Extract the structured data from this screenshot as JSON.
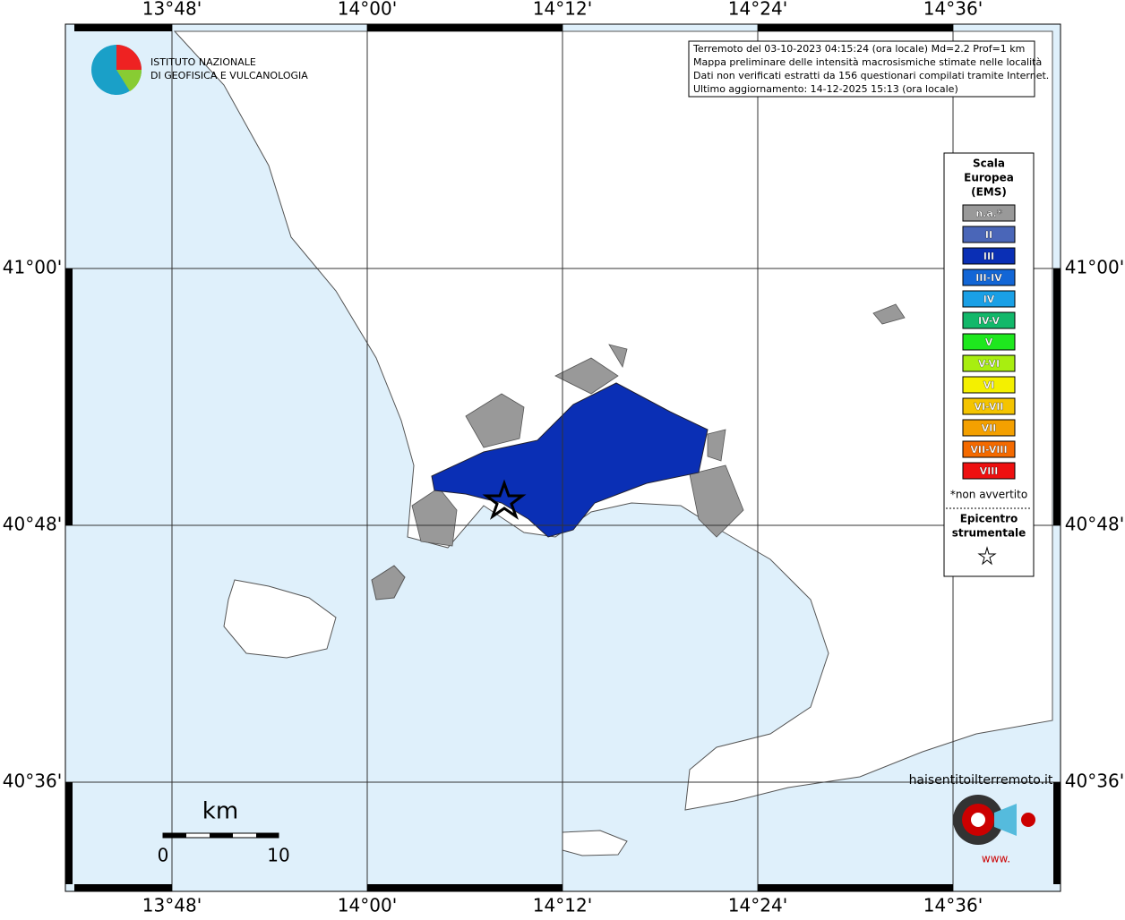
{
  "map": {
    "lon_labels": [
      "13°48'",
      "14°00'",
      "14°12'",
      "14°24'",
      "14°36'"
    ],
    "lat_labels": [
      "41°00'",
      "40°48'",
      "40°36'"
    ],
    "logo": [
      "ISTITUTO NAZIONALE",
      "DI GEOFISICA E VULCANOLOGIA"
    ],
    "info": [
      "Terremoto del 03-10-2023 04:15:24 (ora locale) Md=2.2 Prof=1 km",
      "Mappa preliminare delle intensità macrosismiche stimate nelle località",
      "Dati non verificati estratti da 156 questionari compilati tramite Internet.",
      "Ultimo aggiornamento: 14-12-2025 15:13 (ora locale)"
    ],
    "legend": {
      "title": [
        "Scala",
        "Europea",
        "(EMS)"
      ],
      "items": [
        {
          "label": "n.a.*",
          "color": "#999999"
        },
        {
          "label": "II",
          "color": "#4a66b8"
        },
        {
          "label": "III",
          "color": "#0a2fb5"
        },
        {
          "label": "III-IV",
          "color": "#1266d6"
        },
        {
          "label": "IV",
          "color": "#1aa0e6"
        },
        {
          "label": "IV-V",
          "color": "#12b86a"
        },
        {
          "label": "V",
          "color": "#1ee81e"
        },
        {
          "label": "V-VI",
          "color": "#a8ee10"
        },
        {
          "label": "VI",
          "color": "#f4f000"
        },
        {
          "label": "VI-VII",
          "color": "#f4c400"
        },
        {
          "label": "VII",
          "color": "#f4a000"
        },
        {
          "label": "VII-VIII",
          "color": "#f46a00"
        },
        {
          "label": "VIII",
          "color": "#ee1010"
        }
      ],
      "footnote": "*non avvertito",
      "epicenter": [
        "Epicentro",
        "strumentale"
      ]
    },
    "scale": {
      "unit": "km",
      "labels": [
        "0",
        "10"
      ]
    },
    "site_logo": {
      "text": "haisentitoilterremoto.it",
      "www": "www."
    }
  }
}
